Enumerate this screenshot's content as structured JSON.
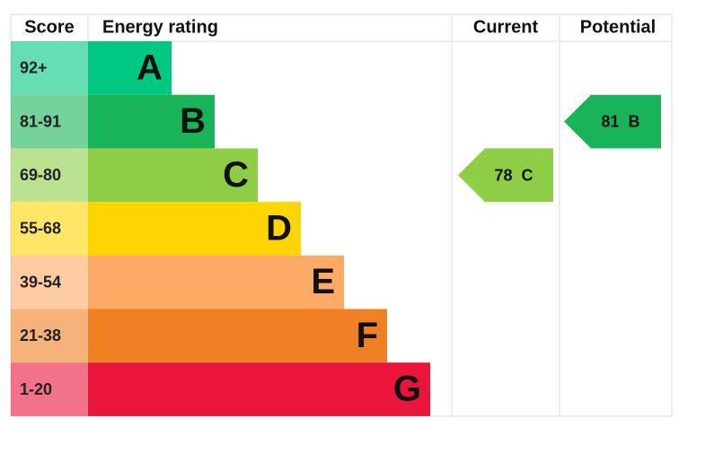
{
  "headers": [
    "Score",
    "Energy rating",
    "Current",
    "Potential"
  ],
  "bands": [
    {
      "score": "92+",
      "letter": "A",
      "color": "#00c781"
    },
    {
      "score": "81-91",
      "letter": "B",
      "color": "#19b459"
    },
    {
      "score": "69-80",
      "letter": "C",
      "color": "#8dce46"
    },
    {
      "score": "55-68",
      "letter": "D",
      "color": "#ffd500"
    },
    {
      "score": "39-54",
      "letter": "E",
      "color": "#fcaa65"
    },
    {
      "score": "21-38",
      "letter": "F",
      "color": "#ef8023"
    },
    {
      "score": "1-20",
      "letter": "G",
      "color": "#e9153b"
    }
  ],
  "current": {
    "value": 78,
    "letter": "C"
  },
  "potential": {
    "value": 81,
    "letter": "B"
  }
}
